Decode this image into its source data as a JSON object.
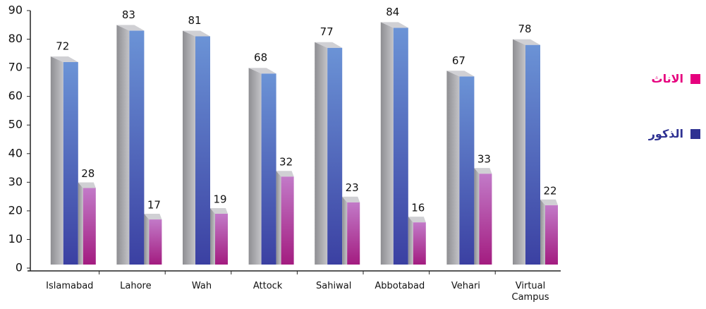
{
  "chart_data": {
    "type": "bar3d",
    "categories": [
      "Islamabad",
      "Lahore",
      "Wah",
      "Attock",
      "Sahiwal",
      "Abbotabad",
      "Vehari",
      "Virtual Campus"
    ],
    "series": [
      {
        "name": "الذكور",
        "color": "#2e3192",
        "values": [
          72,
          83,
          81,
          68,
          77,
          84,
          67,
          78
        ]
      },
      {
        "name": "الاناث",
        "color": "#e6007e",
        "values": [
          28,
          17,
          19,
          32,
          23,
          16,
          33,
          22
        ]
      }
    ],
    "ylim": [
      0,
      90
    ],
    "yticks": [
      0,
      10,
      20,
      30,
      40,
      50,
      60,
      70,
      80,
      90
    ]
  }
}
